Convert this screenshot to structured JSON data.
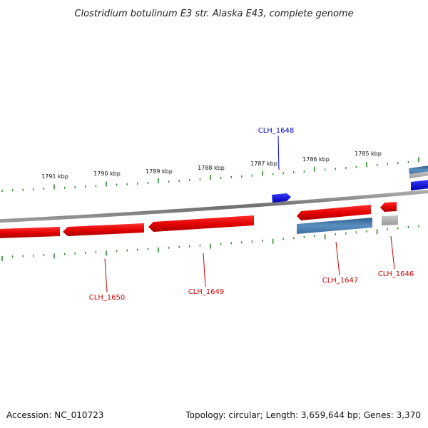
{
  "title": "Clostridium botulinum E3 str. Alaska E43, complete genome",
  "footer": {
    "accession": "Accession: NC_010723",
    "summary": "Topology: circular; Length: 3,659,644 bp; Genes: 3,370"
  },
  "colors": {
    "tick": "#2a8a2a",
    "red_gene": "#e01010",
    "blue_gene": "#1a1ae0",
    "steel_gene": "#4a7fb0",
    "grey_gene": "#b4b4b4",
    "backbone": "#8a8a8a",
    "label_red": "#cc0000",
    "label_blue": "#0000cc"
  },
  "scale_labels": [
    "1791 kbp",
    "1790 kbp",
    "1789 kbp",
    "1788 kbp",
    "1787 kbp",
    "1786 kbp",
    "1785 kbp"
  ],
  "genes": [
    {
      "id": "CLH_1650",
      "label": "CLH_1650"
    },
    {
      "id": "CLH_1649",
      "label": "CLH_1649"
    },
    {
      "id": "CLH_1648",
      "label": "CLH_1648"
    },
    {
      "id": "CLH_1647",
      "label": "CLH_1647"
    },
    {
      "id": "CLH_1646",
      "label": "CLH_1646"
    }
  ]
}
